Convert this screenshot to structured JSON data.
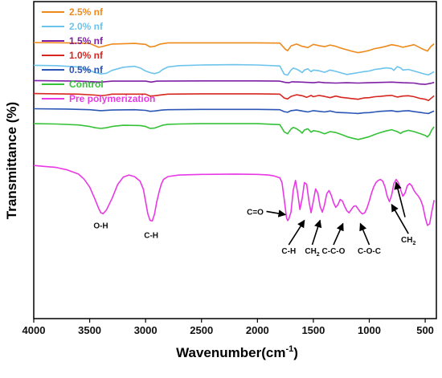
{
  "chart_data": {
    "type": "line",
    "xlabel": "Wavenumber(cm",
    "xlabel_sup": "-1",
    "xlabel_close": ")",
    "ylabel": "Transmittance (%)",
    "xlim": [
      4000,
      400
    ],
    "x_reversed": true,
    "xticks": [
      "4000",
      "3500",
      "3000",
      "2500",
      "2000",
      "1500",
      "1000",
      "500"
    ],
    "xtick_values": [
      4000,
      3500,
      3000,
      2500,
      2000,
      1500,
      1000,
      500
    ],
    "yticks": "none",
    "ylim": [
      0,
      100
    ],
    "grid": false,
    "legend_position": "top-left",
    "series": [
      {
        "name": "2.5% nf",
        "color": "#ee8a1c",
        "x": [
          4000,
          3700,
          3500,
          3420,
          3380,
          3300,
          3100,
          3000,
          2960,
          2920,
          2870,
          2800,
          2500,
          2000,
          1800,
          1750,
          1730,
          1700,
          1650,
          1600,
          1550,
          1500,
          1450,
          1400,
          1350,
          1300,
          1250,
          1150,
          1100,
          1050,
          1000,
          950,
          900,
          850,
          800,
          750,
          700,
          650,
          600,
          520,
          480,
          450,
          420
        ],
        "y": [
          87.1,
          87.0,
          86.8,
          85.6,
          85.9,
          86.6,
          86.8,
          86.5,
          85.7,
          85.9,
          86.6,
          87.0,
          87.0,
          87.0,
          86.9,
          85.0,
          84.5,
          86.0,
          86.6,
          85.9,
          85.5,
          86.5,
          86.1,
          85.8,
          86.3,
          85.9,
          85.3,
          84.3,
          83.9,
          84.2,
          84.6,
          85.2,
          85.5,
          85.9,
          86.4,
          86.1,
          85.6,
          86.0,
          86.4,
          85.0,
          84.4,
          85.8,
          86.7
        ]
      },
      {
        "name": "2.0% nf",
        "color": "#6cc3ec",
        "x": [
          4000,
          3800,
          3600,
          3500,
          3450,
          3400,
          3350,
          3300,
          3200,
          3100,
          3050,
          3000,
          2950,
          2920,
          2880,
          2850,
          2800,
          2700,
          2500,
          2200,
          2000,
          1800,
          1760,
          1730,
          1700,
          1680,
          1650,
          1620,
          1600,
          1580,
          1550,
          1520,
          1500,
          1450,
          1400,
          1350,
          1300,
          1250,
          1200,
          1150,
          1100,
          1050,
          1000,
          950,
          900,
          850,
          800,
          780,
          750,
          720,
          700,
          650,
          600,
          550,
          500,
          470,
          440,
          420
        ],
        "y": [
          79.9,
          79.8,
          79.4,
          78.3,
          77.6,
          77.2,
          77.4,
          78.3,
          79.3,
          79.6,
          79.1,
          78.1,
          77.5,
          77.3,
          77.7,
          78.5,
          79.4,
          79.8,
          80.0,
          80.1,
          80.0,
          79.7,
          77.1,
          76.8,
          78.4,
          79.0,
          78.7,
          78.1,
          77.6,
          78.4,
          78.8,
          77.9,
          78.4,
          78.2,
          77.7,
          78.4,
          78.0,
          77.5,
          77.0,
          77.3,
          77.6,
          77.9,
          78.1,
          78.6,
          78.8,
          79.1,
          78.9,
          78.3,
          79.5,
          79.1,
          78.4,
          78.6,
          78.1,
          77.6,
          77.1,
          76.9,
          77.5,
          77.9
        ]
      },
      {
        "name": "1.5% nf",
        "color": "#7f1fa6",
        "x": [
          4000,
          3600,
          3400,
          3300,
          3000,
          2950,
          2900,
          2500,
          2000,
          1800,
          1750,
          1720,
          1690,
          1600,
          1500,
          1450,
          1400,
          1300,
          1200,
          1100,
          1000,
          900,
          800,
          700,
          600,
          550,
          500,
          470,
          440,
          420
        ],
        "y": [
          75.1,
          74.9,
          74.6,
          74.9,
          74.9,
          74.6,
          74.9,
          75.0,
          75.0,
          74.9,
          74.5,
          74.4,
          74.7,
          74.6,
          74.4,
          74.6,
          74.4,
          74.3,
          74.4,
          74.3,
          74.4,
          74.5,
          74.6,
          74.4,
          74.3,
          74.0,
          73.9,
          74.1,
          74.3,
          74.5
        ]
      },
      {
        "name": "1.0% nf",
        "color": "#d7261f",
        "x": [
          4000,
          3600,
          3450,
          3400,
          3350,
          3300,
          3000,
          2960,
          2920,
          2850,
          2800,
          2500,
          2000,
          1800,
          1760,
          1730,
          1700,
          1650,
          1600,
          1560,
          1520,
          1500,
          1450,
          1400,
          1350,
          1300,
          1250,
          1200,
          1150,
          1100,
          1050,
          1000,
          950,
          900,
          850,
          800,
          750,
          700,
          650,
          600,
          550,
          500,
          470,
          440,
          420
        ],
        "y": [
          71.0,
          70.8,
          70.5,
          70.3,
          70.5,
          70.8,
          70.8,
          70.2,
          70.3,
          70.6,
          70.8,
          70.9,
          70.9,
          70.8,
          69.6,
          69.3,
          70.1,
          70.6,
          70.3,
          69.8,
          70.4,
          70.0,
          70.4,
          70.1,
          69.7,
          70.2,
          69.8,
          69.6,
          69.4,
          69.2,
          69.6,
          69.7,
          70.0,
          70.1,
          70.3,
          70.4,
          69.9,
          70.2,
          70.3,
          70.0,
          69.5,
          69.2,
          68.8,
          69.7,
          70.3
        ]
      },
      {
        "name": "0.5% nf",
        "color": "#2b55b5",
        "x": [
          4000,
          3700,
          3500,
          3400,
          3300,
          3100,
          3000,
          2960,
          2920,
          2850,
          2800,
          2500,
          2000,
          1800,
          1760,
          1730,
          1700,
          1650,
          1600,
          1550,
          1500,
          1450,
          1400,
          1350,
          1300,
          1250,
          1200,
          1150,
          1100,
          1050,
          1000,
          950,
          900,
          850,
          800,
          750,
          700,
          650,
          600,
          550,
          500,
          470,
          440,
          420
        ],
        "y": [
          66.2,
          66.1,
          65.9,
          65.6,
          65.8,
          65.9,
          65.7,
          65.4,
          65.5,
          65.8,
          65.9,
          66.0,
          66.0,
          65.9,
          65.3,
          65.1,
          65.6,
          65.8,
          65.5,
          65.2,
          65.6,
          65.4,
          65.2,
          65.5,
          65.1,
          65.0,
          64.9,
          64.8,
          64.7,
          64.9,
          65.0,
          65.2,
          65.4,
          65.5,
          65.6,
          65.3,
          65.5,
          65.6,
          65.3,
          65.1,
          64.8,
          64.7,
          65.2,
          65.5
        ]
      },
      {
        "name": "Control",
        "color": "#36c238",
        "x": [
          4000,
          3800,
          3600,
          3500,
          3450,
          3400,
          3350,
          3300,
          3200,
          3050,
          3000,
          2960,
          2920,
          2880,
          2850,
          2800,
          2700,
          2500,
          2000,
          1800,
          1760,
          1730,
          1700,
          1680,
          1650,
          1620,
          1600,
          1580,
          1550,
          1520,
          1500,
          1450,
          1400,
          1350,
          1300,
          1250,
          1200,
          1150,
          1100,
          1050,
          1000,
          950,
          900,
          850,
          800,
          750,
          720,
          700,
          650,
          600,
          550,
          500,
          480,
          460,
          440,
          420
        ],
        "y": [
          61.5,
          61.4,
          61.1,
          60.6,
          60.2,
          60.0,
          60.2,
          60.6,
          61.0,
          60.9,
          60.6,
          60.0,
          60.1,
          60.6,
          61.0,
          61.3,
          61.4,
          61.5,
          61.5,
          61.2,
          58.9,
          58.3,
          59.8,
          60.3,
          59.9,
          59.2,
          58.5,
          59.5,
          59.9,
          58.8,
          59.3,
          59.0,
          58.3,
          59.0,
          58.7,
          58.1,
          57.4,
          56.9,
          56.5,
          56.9,
          57.4,
          58.1,
          58.7,
          59.2,
          59.6,
          59.0,
          58.4,
          58.9,
          59.4,
          59.0,
          58.4,
          57.8,
          57.3,
          58.1,
          59.6,
          60.5
        ]
      },
      {
        "name": "Pre polymerization",
        "color": "#e839e5",
        "x": [
          4000,
          3900,
          3800,
          3700,
          3600,
          3550,
          3500,
          3450,
          3420,
          3400,
          3380,
          3350,
          3300,
          3250,
          3200,
          3150,
          3100,
          3050,
          3020,
          3000,
          2980,
          2960,
          2940,
          2920,
          2900,
          2880,
          2860,
          2840,
          2800,
          2700,
          2600,
          2500,
          2200,
          2000,
          1900,
          1850,
          1800,
          1780,
          1760,
          1740,
          1730,
          1720,
          1700,
          1680,
          1660,
          1640,
          1620,
          1600,
          1580,
          1560,
          1540,
          1520,
          1500,
          1480,
          1460,
          1440,
          1420,
          1400,
          1380,
          1360,
          1340,
          1320,
          1300,
          1280,
          1260,
          1240,
          1220,
          1200,
          1180,
          1160,
          1140,
          1120,
          1100,
          1080,
          1060,
          1040,
          1020,
          1000,
          980,
          960,
          940,
          920,
          900,
          880,
          860,
          840,
          820,
          800,
          780,
          760,
          740,
          720,
          700,
          680,
          660,
          640,
          620,
          600,
          580,
          560,
          540,
          520,
          500,
          480,
          460,
          440,
          420
        ],
        "y": [
          48.3,
          48.0,
          47.7,
          46.9,
          45.6,
          44.0,
          41.5,
          37.5,
          34.8,
          33.4,
          33.1,
          34.3,
          37.9,
          42.3,
          44.6,
          45.3,
          44.8,
          43.4,
          40.8,
          36.9,
          33.1,
          31.0,
          30.8,
          33.0,
          36.9,
          39.9,
          42.4,
          43.9,
          44.8,
          45.3,
          45.4,
          45.5,
          45.6,
          45.5,
          45.3,
          45.0,
          44.4,
          42.9,
          37.6,
          31.9,
          30.9,
          31.4,
          33.6,
          40.5,
          43.6,
          39.6,
          34.4,
          37.9,
          42.9,
          42.4,
          37.1,
          33.4,
          37.1,
          40.9,
          39.6,
          35.4,
          33.6,
          35.9,
          39.4,
          40.4,
          38.9,
          36.6,
          35.1,
          35.9,
          37.6,
          37.1,
          35.4,
          34.0,
          33.4,
          34.4,
          35.4,
          35.6,
          34.6,
          33.6,
          33.0,
          33.4,
          34.9,
          37.1,
          39.6,
          41.6,
          42.9,
          43.6,
          43.9,
          43.4,
          41.6,
          38.6,
          36.9,
          38.9,
          42.6,
          43.9,
          42.9,
          40.6,
          38.6,
          39.6,
          41.9,
          42.6,
          41.9,
          40.4,
          39.4,
          38.6,
          37.4,
          35.4,
          31.9,
          29.4,
          29.9,
          33.9,
          37.4
        ]
      }
    ],
    "annotations": [
      {
        "text": "O-H",
        "at_x": 3400,
        "at_y": 28.5,
        "arrow": false
      },
      {
        "text": "C-H",
        "at_x": 2950,
        "at_y": 25.5,
        "arrow": false
      },
      {
        "text": "C=O",
        "at_x": 2020,
        "at_y": 32.8,
        "arrow": true,
        "arrow_to_x": 1750,
        "arrow_to_y": 32.8
      },
      {
        "text": "C-H",
        "at_x": 1720,
        "at_y": 20.5,
        "arrow": true,
        "arrow_to_x": 1580,
        "arrow_to_y": 31.0
      },
      {
        "text": "CH",
        "sub": "2",
        "at_x": 1510,
        "at_y": 20.5,
        "arrow": true,
        "arrow_to_x": 1440,
        "arrow_to_y": 31.0
      },
      {
        "text": "C-C-O",
        "at_x": 1320,
        "at_y": 20.5,
        "arrow": true,
        "arrow_to_x": 1235,
        "arrow_to_y": 30.0
      },
      {
        "text": "C-O-C",
        "at_x": 1000,
        "at_y": 20.5,
        "arrow": true,
        "arrow_to_x": 1080,
        "arrow_to_y": 30.0
      },
      {
        "text": "CH",
        "sub": "2",
        "at_x": 650,
        "at_y": 24.0,
        "arrow": true,
        "arrow_to_x": 800,
        "arrow_to_y": 36.0
      },
      {
        "text": "",
        "at_x": 0,
        "at_y": 0,
        "arrow": true,
        "arrow_from_x": 680,
        "arrow_from_y": 32.0,
        "arrow_to_x": 760,
        "arrow_to_y": 43.0
      }
    ]
  }
}
